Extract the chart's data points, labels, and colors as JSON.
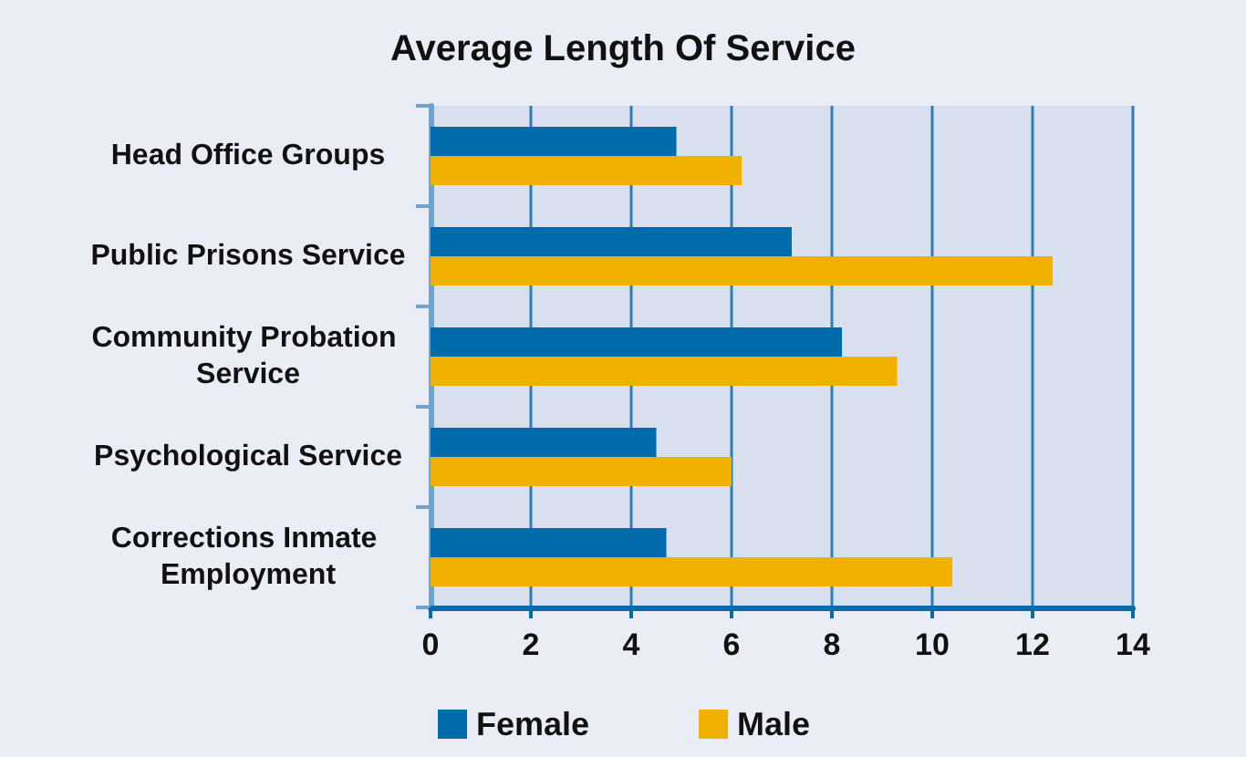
{
  "chart_data": {
    "type": "bar",
    "orientation": "horizontal",
    "title": "Average Length Of Service",
    "categories": [
      "Head Office Groups",
      "Public Prisons Service",
      "Community Probation Service",
      "Psychological Service",
      "Corrections Inmate Employment"
    ],
    "series": [
      {
        "name": "Female",
        "color": "#006bab",
        "values": [
          4.9,
          7.2,
          8.2,
          4.5,
          4.7
        ]
      },
      {
        "name": "Male",
        "color": "#f0b000",
        "values": [
          6.2,
          12.4,
          9.3,
          6.0,
          10.4
        ]
      }
    ],
    "xlim": [
      0,
      14
    ],
    "xticks": [
      0,
      2,
      4,
      6,
      8,
      10,
      12,
      14
    ],
    "grid": "x",
    "legend": "bottom"
  }
}
